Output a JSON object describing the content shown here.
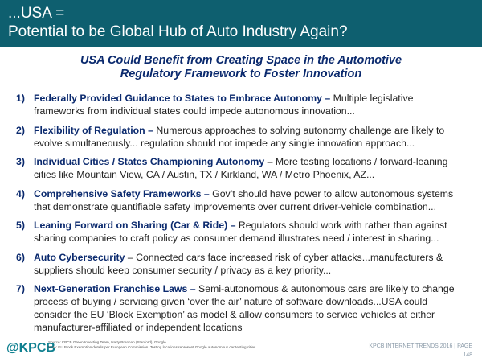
{
  "header": {
    "title_lines": [
      "...USA =",
      "Potential to be Global Hub of Auto Industry Again?"
    ]
  },
  "subtitle_lines": [
    "USA Could Benefit from Creating Space in the Automotive",
    "Regulatory Framework to Foster Innovation"
  ],
  "items": [
    {
      "number": "1)",
      "lead": "Federally Provided Guidance to States to Embrace Autonomy –",
      "text": "Multiple legislative frameworks from individual states could impede autonomous innovation..."
    },
    {
      "number": "2)",
      "lead": "Flexibility of Regulation –",
      "text": "Numerous approaches to solving autonomy challenge are likely to evolve simultaneously... regulation should not impede any single innovation approach..."
    },
    {
      "number": "3)",
      "lead": "Individual Cities / States Championing Autonomy",
      "text": "– More testing locations / forward-leaning cities like Mountain View, CA / Austin, TX / Kirkland, WA / Metro Phoenix, AZ..."
    },
    {
      "number": "4)",
      "lead": "Comprehensive Safety Frameworks –",
      "text": "Gov’t should have power to allow autonomous systems that demonstrate quantifiable safety improvements over current driver-vehicle combination..."
    },
    {
      "number": "5)",
      "lead": "Leaning Forward on Sharing (Car & Ride) –",
      "text": "Regulators should work with rather than against sharing companies to craft policy as consumer demand illustrates need / interest in sharing..."
    },
    {
      "number": "6)",
      "lead": "Auto Cybersecurity",
      "text": "– Connected cars face increased risk of cyber attacks...manufacturers & suppliers should keep consumer security / privacy as a key priority..."
    },
    {
      "number": "7)",
      "lead": "Next-Generation Franchise Laws –",
      "text": "Semi-autonomous & autonomous cars are likely to change process of buying / servicing given ‘over the air’ nature of software downloads...USA could consider the EU ‘Block Exemption’ as model & allow consumers to service vehicles at either manufacturer-affiliated or independent locations"
    }
  ],
  "footer": {
    "logo": "@KPCB",
    "source": "Source: KPCB Green Investing Team, Hatty Brennan (Stanford), Google.",
    "note": "Note: EU Block Exemption details per European Commission. Testing locations represent Google autonomous car testing cities.",
    "trend": "KPCB INTERNET TRENDS 2016  |  PAGE",
    "page": "148"
  }
}
